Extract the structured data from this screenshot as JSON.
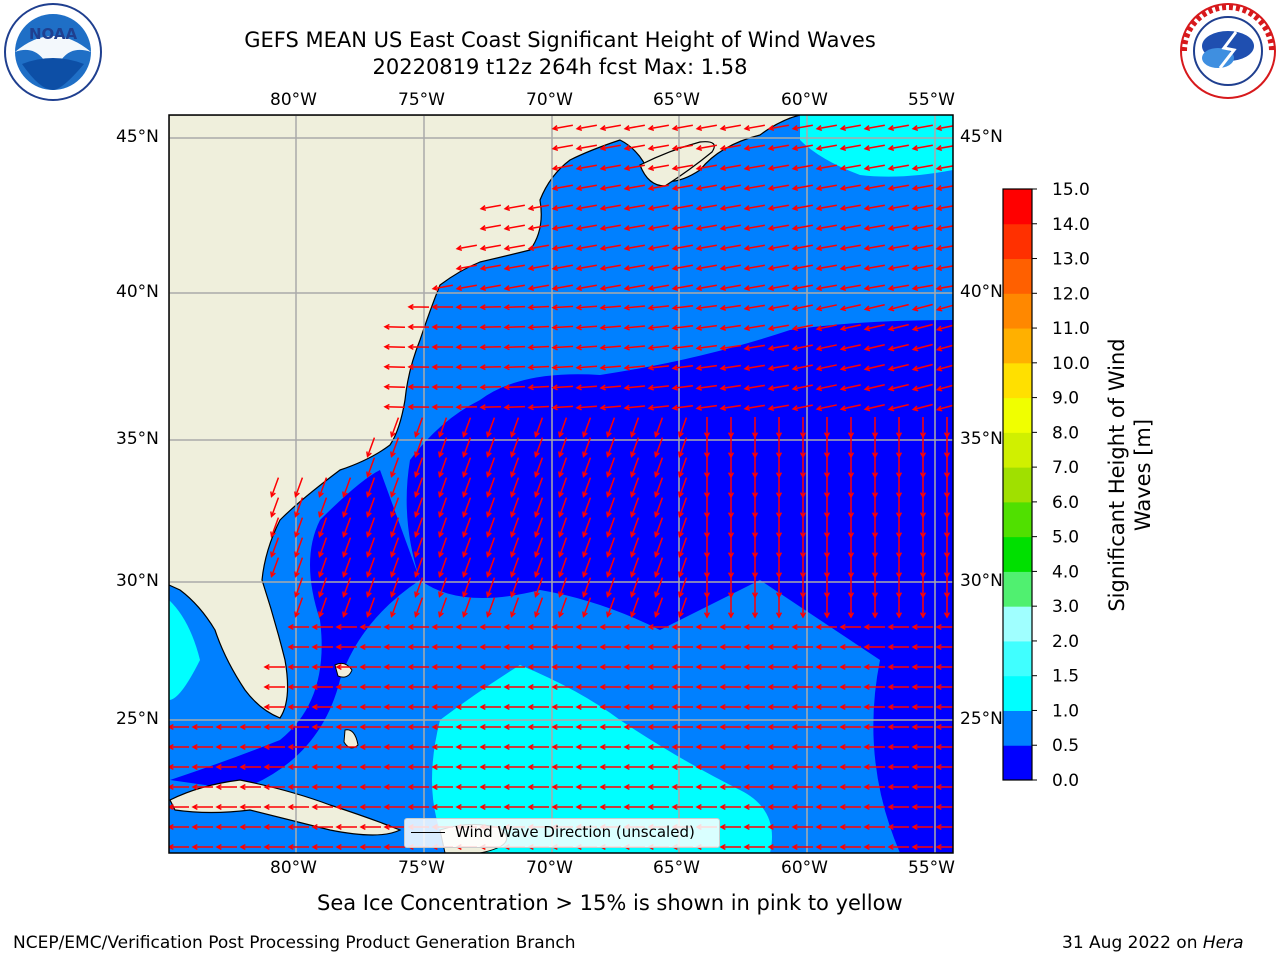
{
  "header": {
    "title_line1": "GEFS MEAN US East Coast Significant Height of Wind Waves",
    "title_line2": "20220819 t12z 264h fcst   Max: 1.58"
  },
  "logos": {
    "noaa": {
      "text": "NOAA",
      "ring_text": "NATIONAL OCEANIC AND ATMOSPHERIC ADMINISTRATION • U.S. DEPARTMENT OF COMMERCE",
      "color": "#1f6fc6"
    },
    "nws": {
      "ring_text": "NATIONAL WEATHER SERVICE",
      "color": "#d7191c"
    }
  },
  "map": {
    "lon_ticks": [
      "80°W",
      "75°W",
      "70°W",
      "65°W",
      "60°W",
      "55°W"
    ],
    "lat_ticks": [
      "45°N",
      "40°N",
      "35°N",
      "30°N",
      "25°N"
    ],
    "land_color": "#efefdc",
    "arrow_color": "#ff0000",
    "legend_label": "Wind Wave Direction (unscaled)"
  },
  "colorbar": {
    "label_line1": "Significant Height of Wind",
    "label_line2": "Waves [m]",
    "ticks": [
      "0.0",
      "0.5",
      "1.0",
      "1.5",
      "2.0",
      "3.0",
      "4.0",
      "5.0",
      "6.0",
      "7.0",
      "8.0",
      "9.0",
      "10.0",
      "11.0",
      "12.0",
      "13.0",
      "14.0",
      "15.0"
    ],
    "colors": [
      "#0000ff",
      "#0080ff",
      "#00ffff",
      "#40ffff",
      "#a0ffff",
      "#50f070",
      "#00e000",
      "#50e000",
      "#a0e000",
      "#d0f000",
      "#f0ff00",
      "#ffe000",
      "#ffb000",
      "#ff8800",
      "#ff6000",
      "#ff3000",
      "#ff0000"
    ]
  },
  "footer": {
    "note": "Sea Ice Concentration > 15% is shown in pink to yellow",
    "left": "NCEP/EMC/Verification Post Processing Product Generation Branch",
    "right_prefix": "31 Aug 2022 on ",
    "right_host": "Hera"
  }
}
